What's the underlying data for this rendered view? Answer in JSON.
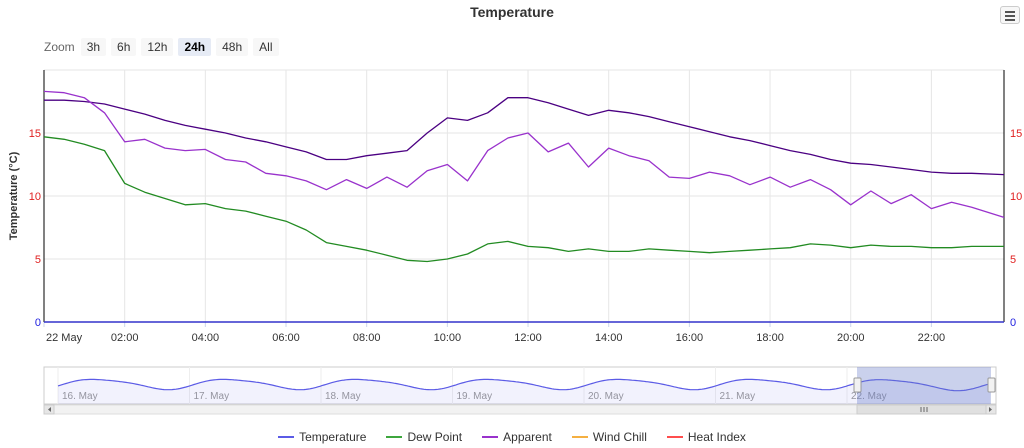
{
  "title": "Temperature",
  "zoom": {
    "label": "Zoom",
    "buttons": [
      "3h",
      "6h",
      "12h",
      "24h",
      "48h",
      "All"
    ],
    "active": "24h"
  },
  "menu_icon": "hamburger-menu-icon",
  "colors": {
    "temperature": "#4B0082",
    "dew_point": "#228B22",
    "apparent": "#9932CC",
    "wind_chill": "#F5B041",
    "heat_index": "#FF4D4D",
    "nav_temperature": "#5B5BE6",
    "axis_label_right": "#E02020",
    "axis_zero": "#2020E0"
  },
  "legend": [
    {
      "name": "Temperature",
      "color": "#5B5BE6"
    },
    {
      "name": "Dew Point",
      "color": "#3DA63D"
    },
    {
      "name": "Apparent",
      "color": "#9932CC"
    },
    {
      "name": "Wind Chill",
      "color": "#F5B041"
    },
    {
      "name": "Heat Index",
      "color": "#FF4D4D"
    }
  ],
  "chart_data": {
    "type": "line",
    "title": "Temperature",
    "ylabel": "Temperature (°C)",
    "xlabel": "",
    "ylim": [
      0,
      20
    ],
    "y_ticks": [
      "0",
      "5",
      "10",
      "15"
    ],
    "x_ticks": [
      "22 May",
      "02:00",
      "04:00",
      "06:00",
      "08:00",
      "10:00",
      "12:00",
      "14:00",
      "16:00",
      "18:00",
      "20:00",
      "22:00"
    ],
    "x_range_hours": [
      0,
      23.8
    ],
    "grid": true,
    "legend_position": "bottom",
    "series": [
      {
        "name": "Temperature",
        "x": [
          0,
          0.5,
          1,
          1.5,
          2,
          2.5,
          3,
          3.5,
          4,
          4.5,
          5,
          5.5,
          6,
          6.5,
          7,
          7.5,
          8,
          8.5,
          9,
          9.5,
          10,
          10.5,
          11,
          11.5,
          12,
          12.5,
          13,
          13.5,
          14,
          14.5,
          15,
          15.5,
          16,
          16.5,
          17,
          17.5,
          18,
          18.5,
          19,
          19.5,
          20,
          20.5,
          21,
          21.5,
          22,
          22.5,
          23,
          23.8
        ],
        "y": [
          17.6,
          17.6,
          17.5,
          17.3,
          16.9,
          16.5,
          16.0,
          15.6,
          15.3,
          15.0,
          14.6,
          14.3,
          13.9,
          13.5,
          12.9,
          12.9,
          13.2,
          13.4,
          13.6,
          15.0,
          16.2,
          16.0,
          16.6,
          17.8,
          17.8,
          17.4,
          16.9,
          16.4,
          16.8,
          16.6,
          16.3,
          15.9,
          15.5,
          15.1,
          14.7,
          14.4,
          14.0,
          13.6,
          13.3,
          12.9,
          12.6,
          12.5,
          12.3,
          12.1,
          11.9,
          11.8,
          11.8,
          11.7
        ]
      },
      {
        "name": "Dew Point",
        "x": [
          0,
          0.5,
          1,
          1.5,
          2,
          2.5,
          3,
          3.5,
          4,
          4.5,
          5,
          5.5,
          6,
          6.5,
          7,
          7.5,
          8,
          8.5,
          9,
          9.5,
          10,
          10.5,
          11,
          11.5,
          12,
          12.5,
          13,
          13.5,
          14,
          14.5,
          15,
          15.5,
          16,
          16.5,
          17,
          17.5,
          18,
          18.5,
          19,
          19.5,
          20,
          20.5,
          21,
          21.5,
          22,
          22.5,
          23,
          23.8
        ],
        "y": [
          14.7,
          14.5,
          14.1,
          13.6,
          11.0,
          10.3,
          9.8,
          9.3,
          9.4,
          9.0,
          8.8,
          8.4,
          8.0,
          7.3,
          6.3,
          6.0,
          5.7,
          5.3,
          4.9,
          4.8,
          5.0,
          5.4,
          6.2,
          6.4,
          6.0,
          5.9,
          5.6,
          5.8,
          5.6,
          5.6,
          5.8,
          5.7,
          5.6,
          5.5,
          5.6,
          5.7,
          5.8,
          5.9,
          6.2,
          6.1,
          5.9,
          6.1,
          6.0,
          6.0,
          5.9,
          5.9,
          6.0,
          6.0
        ]
      },
      {
        "name": "Apparent",
        "x": [
          0,
          0.5,
          1,
          1.5,
          2,
          2.5,
          3,
          3.5,
          4,
          4.5,
          5,
          5.5,
          6,
          6.5,
          7,
          7.5,
          8,
          8.5,
          9,
          9.5,
          10,
          10.5,
          11,
          11.5,
          12,
          12.5,
          13,
          13.5,
          14,
          14.5,
          15,
          15.5,
          16,
          16.5,
          17,
          17.5,
          18,
          18.5,
          19,
          19.5,
          20,
          20.5,
          21,
          21.5,
          22,
          22.5,
          23,
          23.8
        ],
        "y": [
          18.3,
          18.2,
          17.8,
          16.6,
          14.3,
          14.5,
          13.8,
          13.6,
          13.7,
          12.9,
          12.7,
          11.8,
          11.6,
          11.2,
          10.5,
          11.3,
          10.6,
          11.5,
          10.7,
          12.0,
          12.5,
          11.2,
          13.6,
          14.6,
          15.0,
          13.5,
          14.2,
          12.3,
          13.8,
          13.2,
          12.8,
          11.5,
          11.4,
          11.9,
          11.6,
          10.9,
          11.5,
          10.7,
          11.3,
          10.5,
          9.3,
          10.4,
          9.4,
          10.1,
          9.0,
          9.5,
          9.1,
          8.3
        ]
      }
    ]
  },
  "navigator": {
    "x_labels": [
      "16. May",
      "17. May",
      "18. May",
      "19. May",
      "20. May",
      "21. May",
      "22. May"
    ],
    "series_name": "Temperature",
    "scroll_left_icon": "arrow-left-icon",
    "scroll_right_icon": "arrow-right-icon",
    "grip_icon": "scroll-grip-icon"
  }
}
